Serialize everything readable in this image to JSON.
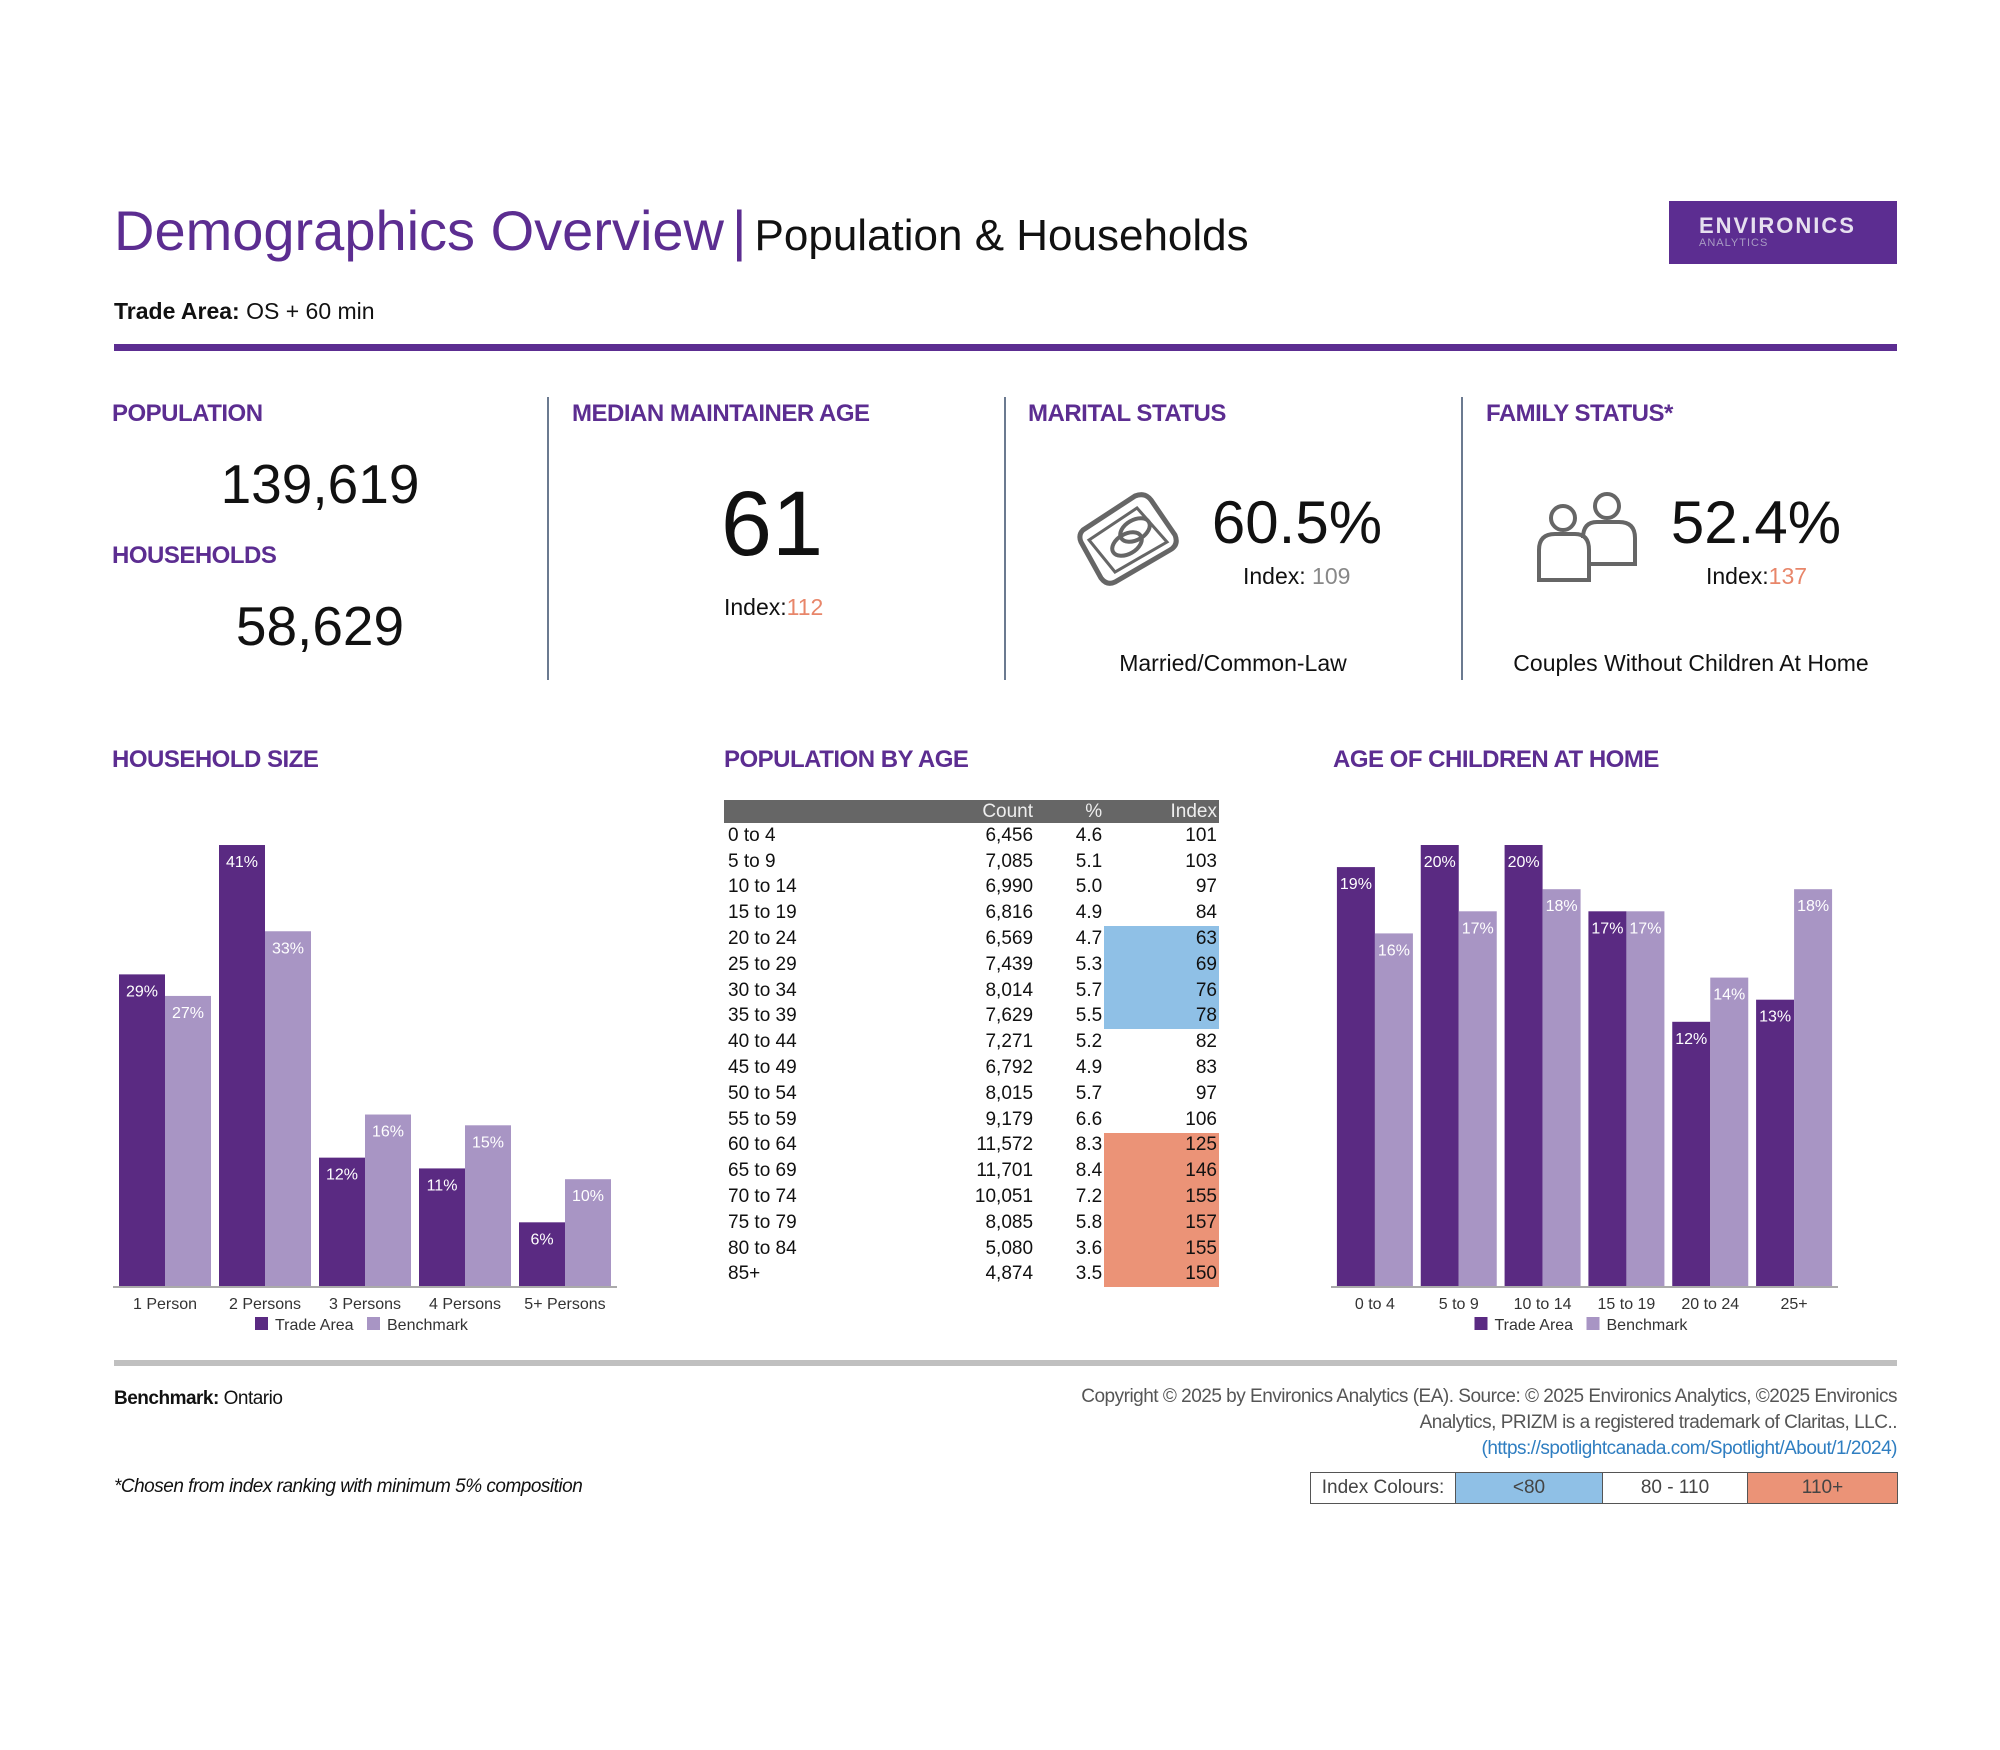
{
  "header": {
    "title": "Demographics Overview",
    "separator": "|",
    "subtitle": "Population & Households",
    "logo_line1": "ENVIRONICS",
    "logo_line2": "ANALYTICS",
    "trade_area_label": "Trade Area:",
    "trade_area_value": "OS + 60 min"
  },
  "colors": {
    "brand_purple": "#5c2d91",
    "trade_area": "#5a2a82",
    "benchmark": "#a895c4",
    "index_low": "#8fc0e6",
    "index_high": "#eb9377",
    "index_high_text": "#e8866a"
  },
  "kpis": {
    "population": {
      "label": "POPULATION",
      "value": "139,619"
    },
    "households": {
      "label": "HOUSEHOLDS",
      "value": "58,629"
    },
    "median_age": {
      "label": "MEDIAN MAINTAINER AGE",
      "value": "61",
      "index_label": "Index:",
      "index": "112"
    },
    "marital": {
      "label": "MARITAL STATUS",
      "icon": "rings-icon",
      "value": "60.5%",
      "index_label": "Index:",
      "index": "109",
      "caption": "Married/Common-Law"
    },
    "family": {
      "label": "FAMILY STATUS*",
      "icon": "people-icon",
      "value": "52.4%",
      "index_label": "Index:",
      "index": "137",
      "caption": "Couples Without Children At Home"
    }
  },
  "chart_data": [
    {
      "type": "bar",
      "title": "HOUSEHOLD SIZE",
      "categories": [
        "1 Person",
        "2 Persons",
        "3 Persons",
        "4 Persons",
        "5+ Persons"
      ],
      "series": [
        {
          "name": "Trade Area",
          "values": [
            29,
            41,
            12,
            11,
            6
          ]
        },
        {
          "name": "Benchmark",
          "values": [
            27,
            33,
            16,
            15,
            10
          ]
        }
      ],
      "value_suffix": "%",
      "legend": "bottom"
    },
    {
      "type": "bar",
      "title": "AGE OF CHILDREN AT HOME",
      "categories": [
        "0 to 4",
        "5 to 9",
        "10 to 14",
        "15 to 19",
        "20 to 24",
        "25+"
      ],
      "series": [
        {
          "name": "Trade Area",
          "values": [
            19,
            20,
            20,
            17,
            12,
            13
          ]
        },
        {
          "name": "Benchmark",
          "values": [
            16,
            17,
            18,
            17,
            14,
            18
          ]
        }
      ],
      "value_suffix": "%",
      "legend": "bottom"
    }
  ],
  "age_table": {
    "title": "POPULATION BY AGE",
    "columns": [
      "",
      "Count",
      "%",
      "Index"
    ],
    "rows": [
      [
        "0 to 4",
        "6,456",
        "4.6",
        "101"
      ],
      [
        "5 to 9",
        "7,085",
        "5.1",
        "103"
      ],
      [
        "10 to 14",
        "6,990",
        "5.0",
        "97"
      ],
      [
        "15 to 19",
        "6,816",
        "4.9",
        "84"
      ],
      [
        "20 to 24",
        "6,569",
        "4.7",
        "63"
      ],
      [
        "25 to 29",
        "7,439",
        "5.3",
        "69"
      ],
      [
        "30 to 34",
        "8,014",
        "5.7",
        "76"
      ],
      [
        "35 to 39",
        "7,629",
        "5.5",
        "78"
      ],
      [
        "40 to 44",
        "7,271",
        "5.2",
        "82"
      ],
      [
        "45 to 49",
        "6,792",
        "4.9",
        "83"
      ],
      [
        "50 to 54",
        "8,015",
        "5.7",
        "97"
      ],
      [
        "55 to 59",
        "9,179",
        "6.6",
        "106"
      ],
      [
        "60 to 64",
        "11,572",
        "8.3",
        "125"
      ],
      [
        "65 to 69",
        "11,701",
        "8.4",
        "146"
      ],
      [
        "70 to 74",
        "10,051",
        "7.2",
        "155"
      ],
      [
        "75 to 79",
        "8,085",
        "5.8",
        "157"
      ],
      [
        "80 to 84",
        "5,080",
        "3.6",
        "155"
      ],
      [
        "85+",
        "4,874",
        "3.5",
        "150"
      ]
    ]
  },
  "footer": {
    "benchmark_label": "Benchmark:",
    "benchmark_value": "Ontario",
    "note": "*Chosen from index ranking with minimum 5% composition",
    "copyright_line1": "Copyright © 2025 by Environics Analytics (EA). Source: © 2025 Environics Analytics, ©2025 Environics",
    "copyright_line2": "Analytics, PRIZM is a registered trademark of Claritas, LLC..",
    "link": "(https://spotlightcanada.com/Spotlight/About/1/2024)",
    "index_colours_label": "Index Colours:",
    "index_low": "<80",
    "index_mid": "80 - 110",
    "index_high": "110+"
  }
}
